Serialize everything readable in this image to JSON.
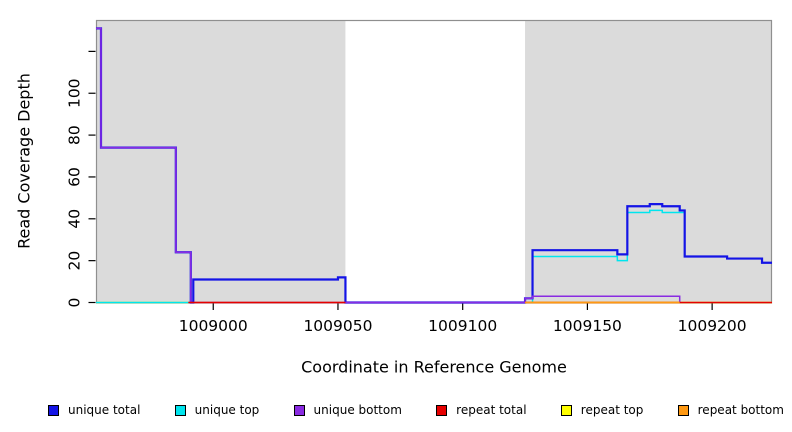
{
  "chart_data": {
    "type": "line",
    "subtype": "step",
    "title": "",
    "xlabel": "Coordinate in Reference Genome",
    "ylabel": "Read Coverage Depth",
    "xlim": [
      1008953,
      1009224
    ],
    "ylim": [
      0,
      135
    ],
    "x_ticks": [
      1009000,
      1009050,
      1009100,
      1009150,
      1009200
    ],
    "y_ticks": [
      0,
      20,
      40,
      60,
      80,
      100,
      120
    ],
    "y_tick_labels": [
      "0",
      "20",
      "40",
      "60",
      "80",
      "100",
      ""
    ],
    "grid": "off",
    "panel_background": "#DBDBDB",
    "panel_border_color": "#8F8F8F",
    "background_regions": [
      {
        "name": "aligned-region-left",
        "x0": 1008953,
        "x1": 1009053,
        "color": "#DBDBDB"
      },
      {
        "name": "uncovered-gap",
        "x0": 1009053,
        "x1": 1009125,
        "color": "#FFFFFF"
      },
      {
        "name": "aligned-region-right",
        "x0": 1009125,
        "x1": 1009224,
        "color": "#DBDBDB"
      }
    ],
    "series": [
      {
        "name": "repeat top",
        "color": "#FFFF00",
        "segments": [
          [
            [
              1008953,
              0
            ],
            [
              1009053,
              0
            ]
          ],
          [
            [
              1009125,
              0
            ],
            [
              1009224,
              0
            ]
          ]
        ]
      },
      {
        "name": "unique top",
        "color": "#00E5EE",
        "segments": [
          [
            [
              1008953,
              0
            ],
            [
              1008992,
              11
            ],
            [
              1009050,
              12
            ],
            [
              1009053,
              0
            ],
            [
              1009128,
              22
            ],
            [
              1009162,
              20
            ],
            [
              1009166,
              43
            ],
            [
              1009175,
              44
            ],
            [
              1009180,
              43
            ],
            [
              1009189,
              22
            ],
            [
              1009206,
              21
            ],
            [
              1009220,
              19
            ],
            [
              1009224,
              19
            ]
          ]
        ]
      },
      {
        "name": "unique total",
        "color": "#1414E6",
        "segments": [
          [
            [
              1008953,
              131
            ],
            [
              1008955,
              74
            ],
            [
              1008985,
              24
            ],
            [
              1008991,
              0
            ],
            [
              1008992,
              11
            ],
            [
              1009050,
              12
            ],
            [
              1009053,
              0
            ],
            [
              1009125,
              2
            ],
            [
              1009128,
              25
            ],
            [
              1009162,
              23
            ],
            [
              1009166,
              46
            ],
            [
              1009175,
              47
            ],
            [
              1009180,
              46
            ],
            [
              1009187,
              44
            ],
            [
              1009189,
              22
            ],
            [
              1009206,
              21
            ],
            [
              1009220,
              19
            ],
            [
              1009224,
              19
            ]
          ]
        ]
      },
      {
        "name": "unique bottom",
        "color": "#8A2BE2",
        "segments": [
          [
            [
              1008953,
              131
            ],
            [
              1008955,
              74
            ],
            [
              1008985,
              24
            ],
            [
              1008991,
              0
            ],
            [
              1009125,
              2
            ],
            [
              1009128,
              3
            ],
            [
              1009187,
              0
            ]
          ]
        ]
      },
      {
        "name": "repeat total",
        "color": "#E60000",
        "segments": [
          [
            [
              1008990,
              0
            ],
            [
              1009053,
              0
            ]
          ],
          [
            [
              1009125,
              0
            ],
            [
              1009224,
              0
            ]
          ]
        ]
      },
      {
        "name": "repeat bottom",
        "color": "#FF9912",
        "segments": [
          [
            [
              1009125,
              0
            ],
            [
              1009187,
              0
            ]
          ]
        ]
      }
    ]
  },
  "legend": {
    "items": [
      {
        "label": "unique total",
        "color": "#1414E6"
      },
      {
        "label": "unique top",
        "color": "#00E5EE"
      },
      {
        "label": "unique bottom",
        "color": "#8A2BE2"
      },
      {
        "label": "repeat total",
        "color": "#E60000"
      },
      {
        "label": "repeat top",
        "color": "#FFFF00"
      },
      {
        "label": "repeat bottom",
        "color": "#FF9912"
      }
    ]
  }
}
